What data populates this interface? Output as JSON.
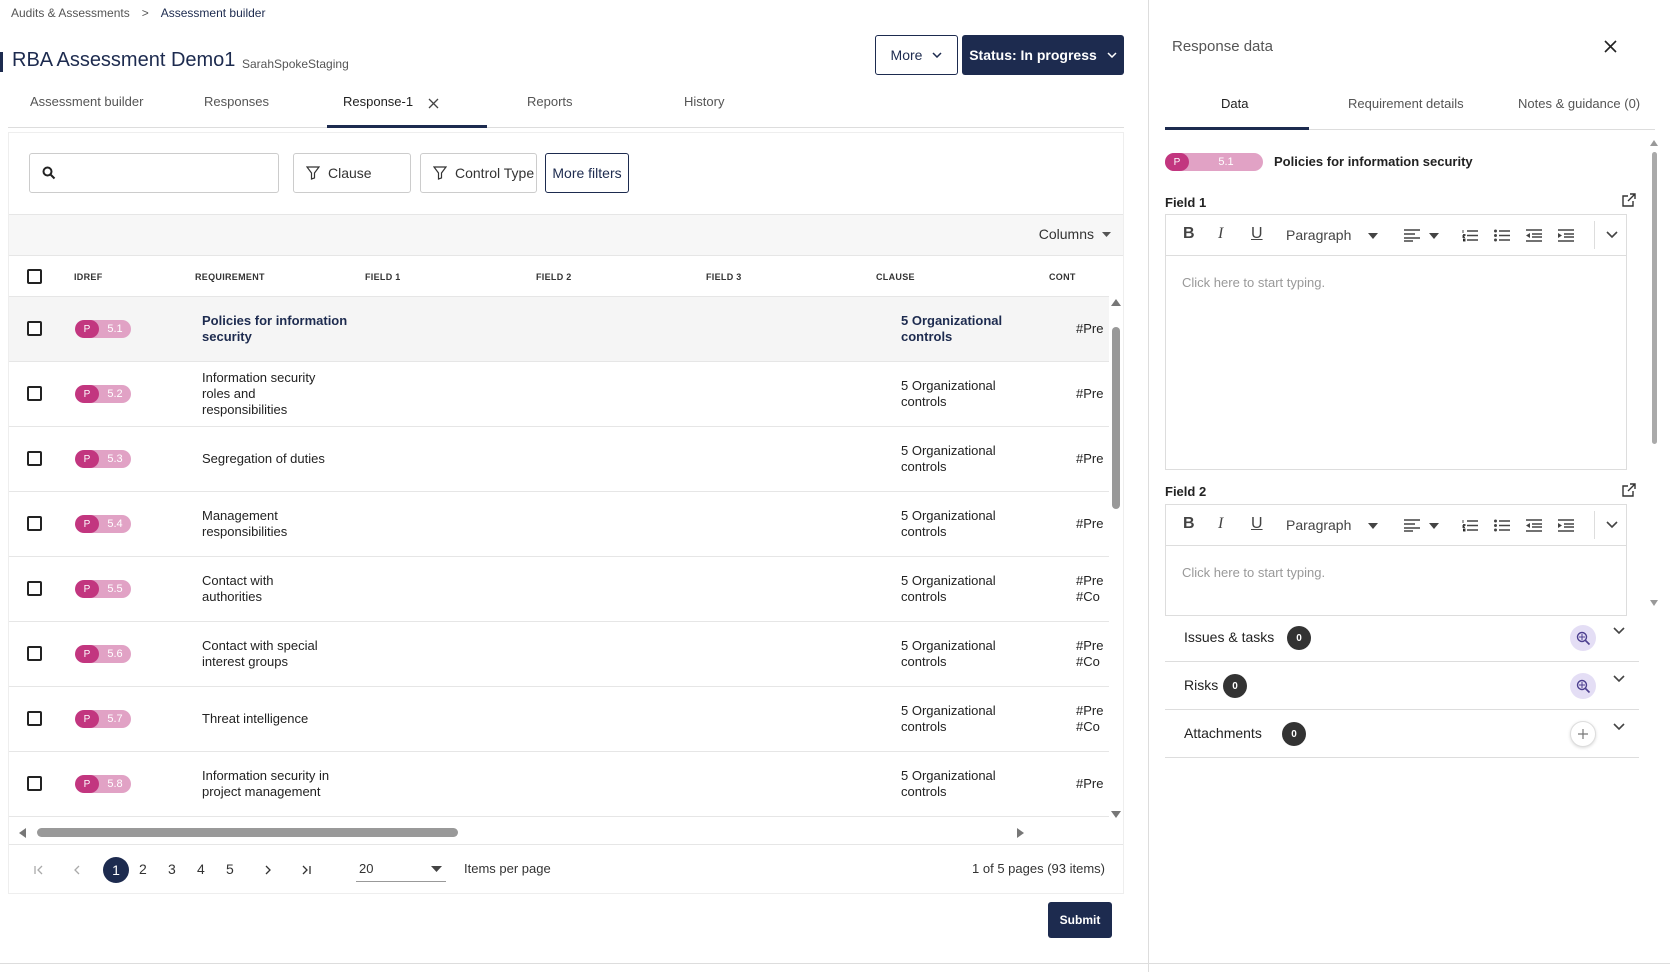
{
  "breadcrumb": {
    "parent": "Audits & Assessments",
    "separator": ">",
    "current": "Assessment builder"
  },
  "header": {
    "title": "RBA Assessment Demo1",
    "subtitle": "SarahSpokeStaging",
    "more_label": "More",
    "status_label": "Status: In progress"
  },
  "tabs": [
    {
      "label": "Assessment builder"
    },
    {
      "label": "Responses"
    },
    {
      "label": "Response-1"
    },
    {
      "label": "Reports"
    },
    {
      "label": "History"
    }
  ],
  "filters": {
    "search_placeholder": "",
    "clause": "Clause",
    "control_type": "Control Type",
    "more": "More filters",
    "columns": "Columns"
  },
  "table": {
    "headers": {
      "idref": "IDREF",
      "requirement": "REQUIREMENT",
      "field1": "FIELD 1",
      "field2": "FIELD 2",
      "field3": "FIELD 3",
      "clause": "CLAUSE",
      "cont": "CONT"
    },
    "rows": [
      {
        "p": "P",
        "id": "5.1",
        "requirement": "Policies for information security",
        "clause": "5 Organizational controls",
        "cont": "#Pre"
      },
      {
        "p": "P",
        "id": "5.2",
        "requirement": "Information security roles and responsibilities",
        "clause": "5 Organizational controls",
        "cont": "#Pre"
      },
      {
        "p": "P",
        "id": "5.3",
        "requirement": "Segregation of duties",
        "clause": "5 Organizational controls",
        "cont": "#Pre"
      },
      {
        "p": "P",
        "id": "5.4",
        "requirement": "Management responsibilities",
        "clause": "5 Organizational controls",
        "cont": "#Pre"
      },
      {
        "p": "P",
        "id": "5.5",
        "requirement": "Contact with authorities",
        "clause": "5 Organizational controls",
        "cont": "#Pre",
        "cont2": "#Co"
      },
      {
        "p": "P",
        "id": "5.6",
        "requirement": "Contact with special interest groups",
        "clause": "5 Organizational controls",
        "cont": "#Pre",
        "cont2": "#Co"
      },
      {
        "p": "P",
        "id": "5.7",
        "requirement": "Threat intelligence",
        "clause": "5 Organizational controls",
        "cont": "#Pre",
        "cont2": "#Co"
      },
      {
        "p": "P",
        "id": "5.8",
        "requirement": "Information security in project management",
        "clause": "5 Organizational controls",
        "cont": "#Pre"
      }
    ]
  },
  "pagination": {
    "pages": [
      "1",
      "2",
      "3",
      "4",
      "5"
    ],
    "current": "1",
    "per_page": "20",
    "per_page_label": "Items per page",
    "summary": "1 of 5 pages (93 items)"
  },
  "submit_label": "Submit",
  "side": {
    "title": "Response data",
    "tabs": [
      {
        "label": "Data"
      },
      {
        "label": "Requirement details"
      },
      {
        "label": "Notes & guidance (0)"
      }
    ],
    "badge_p": "P",
    "badge_id": "5.1",
    "requirement": "Policies for information security",
    "field1_label": "Field 1",
    "field2_label": "Field 2",
    "editor": {
      "bold": "B",
      "italic": "I",
      "underline": "U",
      "paragraph": "Paragraph",
      "placeholder": "Click here to start typing."
    },
    "sections": [
      {
        "label": "Issues & tasks",
        "count": "0"
      },
      {
        "label": "Risks",
        "count": "0"
      },
      {
        "label": "Attachments",
        "count": "0"
      }
    ]
  },
  "colors": {
    "primary": "#1d2b4f",
    "badge_pink": "#c2367f",
    "badge_light": "#e1a2c5"
  }
}
